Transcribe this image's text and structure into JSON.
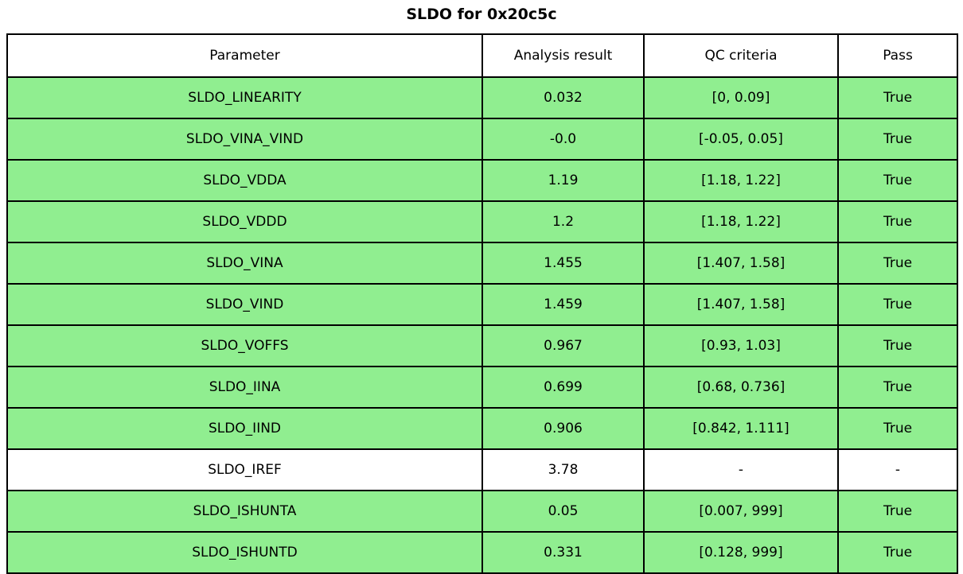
{
  "title": "SLDO for 0x20c5c",
  "colors": {
    "row_pass_green": "#90ee90",
    "row_neutral_white": "#ffffff",
    "border_black": "#000000",
    "text_black": "#000000"
  },
  "chart_data": {
    "type": "table",
    "title": "SLDO for 0x20c5c",
    "columns": [
      "Parameter",
      "Analysis result",
      "QC criteria",
      "Pass"
    ],
    "rows": [
      {
        "parameter": "SLDO_LINEARITY",
        "result": "0.032",
        "criteria": "[0, 0.09]",
        "pass": "True",
        "highlight": true
      },
      {
        "parameter": "SLDO_VINA_VIND",
        "result": "-0.0",
        "criteria": "[-0.05, 0.05]",
        "pass": "True",
        "highlight": true
      },
      {
        "parameter": "SLDO_VDDA",
        "result": "1.19",
        "criteria": "[1.18, 1.22]",
        "pass": "True",
        "highlight": true
      },
      {
        "parameter": "SLDO_VDDD",
        "result": "1.2",
        "criteria": "[1.18, 1.22]",
        "pass": "True",
        "highlight": true
      },
      {
        "parameter": "SLDO_VINA",
        "result": "1.455",
        "criteria": "[1.407, 1.58]",
        "pass": "True",
        "highlight": true
      },
      {
        "parameter": "SLDO_VIND",
        "result": "1.459",
        "criteria": "[1.407, 1.58]",
        "pass": "True",
        "highlight": true
      },
      {
        "parameter": "SLDO_VOFFS",
        "result": "0.967",
        "criteria": "[0.93, 1.03]",
        "pass": "True",
        "highlight": true
      },
      {
        "parameter": "SLDO_IINA",
        "result": "0.699",
        "criteria": "[0.68, 0.736]",
        "pass": "True",
        "highlight": true
      },
      {
        "parameter": "SLDO_IIND",
        "result": "0.906",
        "criteria": "[0.842, 1.111]",
        "pass": "True",
        "highlight": true
      },
      {
        "parameter": "SLDO_IREF",
        "result": "3.78",
        "criteria": "-",
        "pass": "-",
        "highlight": false
      },
      {
        "parameter": "SLDO_ISHUNTA",
        "result": "0.05",
        "criteria": "[0.007, 999]",
        "pass": "True",
        "highlight": true
      },
      {
        "parameter": "SLDO_ISHUNTD",
        "result": "0.331",
        "criteria": "[0.128, 999]",
        "pass": "True",
        "highlight": true
      }
    ]
  }
}
